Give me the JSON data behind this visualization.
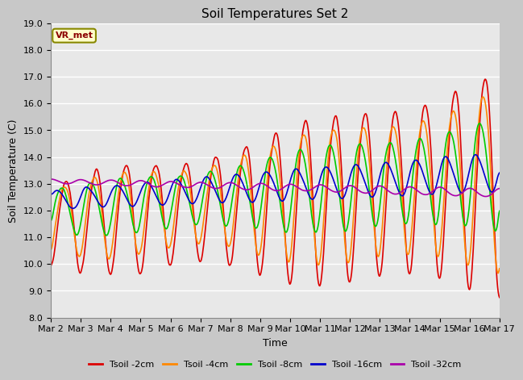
{
  "title": "Soil Temperatures Set 2",
  "xlabel": "Time",
  "ylabel": "Soil Temperature (C)",
  "ylim": [
    8.0,
    19.0
  ],
  "yticks": [
    8.0,
    9.0,
    10.0,
    11.0,
    12.0,
    13.0,
    14.0,
    15.0,
    16.0,
    17.0,
    18.0,
    19.0
  ],
  "xtick_labels": [
    "Mar 2",
    "Mar 3",
    "Mar 4",
    "Mar 5",
    "Mar 6",
    "Mar 7",
    "Mar 8",
    "Mar 9",
    "Mar 10",
    "Mar 11",
    "Mar 12",
    "Mar 13",
    "Mar 14",
    "Mar 15",
    "Mar 16",
    "Mar 17"
  ],
  "series_colors": [
    "#dd0000",
    "#ff8800",
    "#00cc00",
    "#0000cc",
    "#aa00aa"
  ],
  "series_names": [
    "Tsoil -2cm",
    "Tsoil -4cm",
    "Tsoil -8cm",
    "Tsoil -16cm",
    "Tsoil -32cm"
  ],
  "annotation_text": "VR_met",
  "annotation_box_color": "#ffffcc",
  "annotation_border_color": "#888800",
  "fig_bg_color": "#c8c8c8",
  "plot_bg_color": "#e8e8e8",
  "grid_color": "#ffffff",
  "title_fontsize": 11,
  "tick_fontsize": 8,
  "label_fontsize": 9,
  "legend_fontsize": 8,
  "line_width": 1.2
}
